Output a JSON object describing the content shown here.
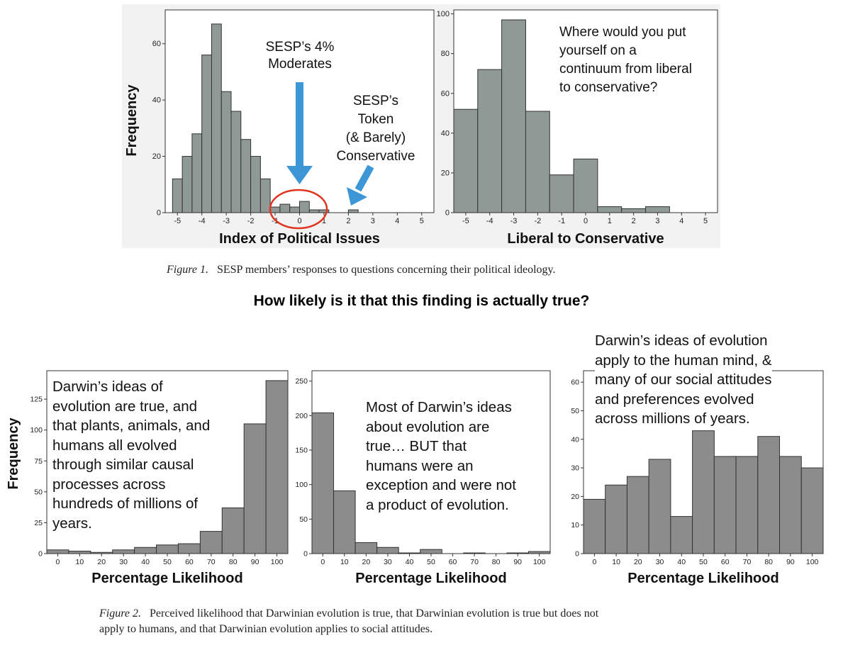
{
  "figure1": {
    "caption_label": "Figure 1.",
    "caption_text": "SESP members’ responses to questions concerning their political ideology.",
    "annotations": {
      "moderates": [
        "SESP’s 4%",
        "Moderates"
      ],
      "conservative": [
        "SESP’s",
        "Token",
        "(& Barely)",
        "Conservative"
      ],
      "question": [
        "Where would you put",
        "yourself on a",
        "continuum from liberal",
        "to conservative?"
      ]
    }
  },
  "question_heading": "How likely is it that this finding is actually true?",
  "figure2": {
    "caption_label": "Figure 2.",
    "caption_line1": "Perceived likelihood that Darwinian evolution is true, that Darwinian evolution is true but does not",
    "caption_line2": "apply to humans, and that Darwinian evolution applies to social attitudes.",
    "annotations": {
      "panel1": [
        "Darwin’s ideas of",
        "evolution are true, and",
        "that plants, animals, and",
        "humans all evolved",
        "through similar causal",
        "processes across",
        "hundreds of millions of",
        "years."
      ],
      "panel2": [
        "Most of Darwin’s ideas",
        "about evolution are",
        "true… BUT that",
        "humans were an",
        "exception and were not",
        "a product of evolution."
      ],
      "panel3": [
        "Darwin’s ideas of evolution",
        "apply to the human mind, &",
        "many of our social attitudes",
        "and preferences evolved",
        "across millions of years."
      ]
    }
  },
  "colors": {
    "bar_fig1": "#8f9a97",
    "bar_fig2": "#8c8c8c",
    "highlight_arrow": "#3d97d6",
    "circle": "#e0341f"
  },
  "chart_data": [
    {
      "type": "bar",
      "title": "",
      "xlabel": "Index of Political Issues",
      "ylabel": "Frequency",
      "bin_centers": [
        -5,
        -4.6,
        -4.2,
        -3.8,
        -3.4,
        -3.0,
        -2.6,
        -2.2,
        -1.8,
        -1.4,
        -1.0,
        -0.6,
        -0.2,
        0.2,
        0.6,
        1.0,
        1.4,
        1.8,
        2.2
      ],
      "bin_width": 0.4,
      "values": [
        12,
        20,
        28,
        56,
        67,
        43,
        36,
        26,
        20,
        12,
        2,
        3,
        2,
        4,
        1,
        1,
        0,
        0,
        1
      ],
      "xticks": [
        "-5",
        "-4",
        "-3",
        "-2",
        "-1",
        "0",
        "1",
        "2",
        "3",
        "4",
        "5"
      ],
      "yticks": [
        "0",
        "20",
        "40",
        "60"
      ],
      "xlim": [
        -5.5,
        5.5
      ],
      "ylim": [
        0,
        72
      ]
    },
    {
      "type": "bar",
      "title": "",
      "xlabel": "Liberal to Conservative",
      "ylabel": "",
      "bin_centers": [
        -5,
        -4,
        -3,
        -2,
        -1,
        0,
        1,
        2,
        3
      ],
      "bin_width": 1,
      "values": [
        52,
        72,
        97,
        51,
        19,
        27,
        3,
        2,
        3
      ],
      "xticks": [
        "-5",
        "-4",
        "-3",
        "-2",
        "-1",
        "0",
        "1",
        "2",
        "3",
        "4",
        "5"
      ],
      "yticks": [
        "0",
        "20",
        "40",
        "60",
        "80",
        "100"
      ],
      "xlim": [
        -5.5,
        5.5
      ],
      "ylim": [
        0,
        102
      ]
    },
    {
      "type": "bar",
      "title": "",
      "xlabel": "Percentage Likelihood",
      "ylabel": "Frequency",
      "bin_centers": [
        0,
        10,
        20,
        30,
        40,
        50,
        60,
        70,
        80,
        90,
        100
      ],
      "bin_width": 10,
      "values": [
        3,
        2,
        1,
        3,
        5,
        7,
        8,
        18,
        37,
        105,
        140
      ],
      "xticks": [
        "0",
        "10",
        "20",
        "30",
        "40",
        "50",
        "60",
        "70",
        "80",
        "90",
        "100"
      ],
      "yticks": [
        "0",
        "25",
        "50",
        "75",
        "100",
        "125"
      ],
      "xlim": [
        -5,
        105
      ],
      "ylim": [
        0,
        148
      ]
    },
    {
      "type": "bar",
      "title": "",
      "xlabel": "Percentage Likelihood",
      "ylabel": "",
      "bin_centers": [
        0,
        10,
        20,
        30,
        40,
        50,
        60,
        70,
        80,
        90,
        100
      ],
      "bin_width": 10,
      "values": [
        204,
        91,
        16,
        9,
        1,
        6,
        0,
        1,
        0,
        1,
        3
      ],
      "xticks": [
        "0",
        "10",
        "20",
        "30",
        "40",
        "50",
        "60",
        "70",
        "80",
        "90",
        "100"
      ],
      "yticks": [
        "0",
        "50",
        "100",
        "150",
        "200",
        "250"
      ],
      "xlim": [
        -5,
        105
      ],
      "ylim": [
        0,
        265
      ]
    },
    {
      "type": "bar",
      "title": "",
      "xlabel": "Percentage Likelihood",
      "ylabel": "",
      "bin_centers": [
        0,
        10,
        20,
        30,
        40,
        50,
        60,
        70,
        80,
        90,
        100
      ],
      "bin_width": 10,
      "values": [
        19,
        24,
        27,
        33,
        13,
        43,
        34,
        34,
        41,
        34,
        30
      ],
      "xticks": [
        "0",
        "10",
        "20",
        "30",
        "40",
        "50",
        "60",
        "70",
        "80",
        "90",
        "100"
      ],
      "yticks": [
        "0",
        "10",
        "20",
        "30",
        "40",
        "50",
        "60"
      ],
      "xlim": [
        -5,
        105
      ],
      "ylim": [
        0,
        64
      ]
    }
  ]
}
